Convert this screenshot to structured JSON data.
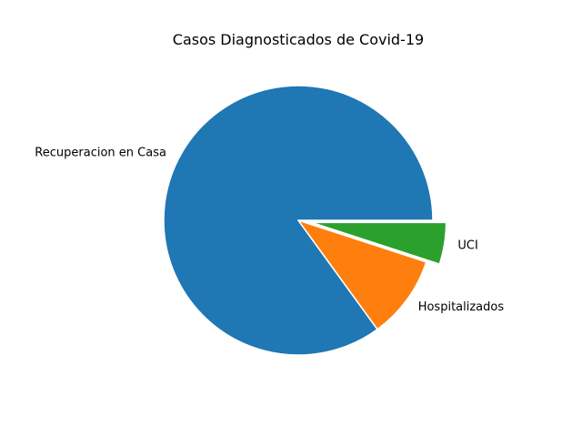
{
  "chart_data": {
    "type": "pie",
    "title": "Casos Diagnosticados de Covid-19",
    "slices": [
      {
        "label": "Recuperacion en Casa",
        "value": 85,
        "color": "#1f77b4",
        "explode": 0
      },
      {
        "label": "Hospitalizados",
        "value": 10,
        "color": "#ff7f0e",
        "explode": 0
      },
      {
        "label": "UCI",
        "value": 5,
        "color": "#2ca02c",
        "explode": 0.1
      }
    ],
    "start_angle": 0,
    "direction": "counterclockwise",
    "legend": "none"
  }
}
